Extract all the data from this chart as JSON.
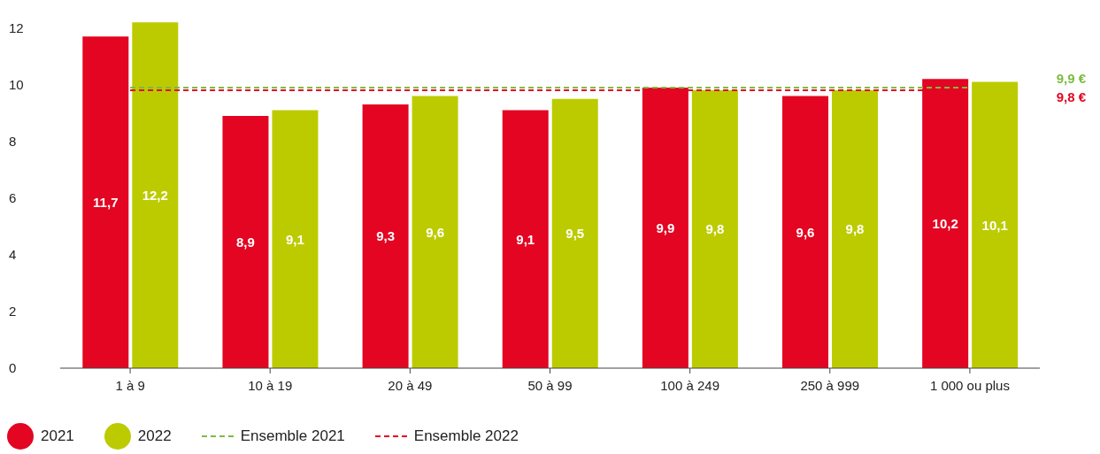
{
  "chart_data": {
    "type": "bar",
    "categories": [
      "1 à 9",
      "10 à 19",
      "20 à 49",
      "50 à 99",
      "100 à 249",
      "250 à 999",
      "1 000 ou plus"
    ],
    "series": [
      {
        "name": "2021",
        "color": "#e30521",
        "values": [
          11.7,
          8.9,
          9.3,
          9.1,
          9.9,
          9.6,
          10.2
        ],
        "value_labels": [
          "11,7",
          "8,9",
          "9,3",
          "9,1",
          "9,9",
          "9,6",
          "10,2"
        ]
      },
      {
        "name": "2022",
        "color": "#bccb00",
        "values": [
          12.2,
          9.1,
          9.6,
          9.5,
          9.8,
          9.8,
          10.1
        ],
        "value_labels": [
          "12,2",
          "9,1",
          "9,6",
          "9,5",
          "9,8",
          "9,8",
          "10,1"
        ]
      },
      {
        "name": "Ensemble 2021",
        "type": "line",
        "line_style": "dashed",
        "color": "#7dbb42",
        "values": [
          9.9,
          9.9,
          9.9,
          9.9,
          9.9,
          9.9,
          9.9
        ]
      },
      {
        "name": "Ensemble 2022",
        "type": "line",
        "line_style": "dashed",
        "color": "#e30521",
        "values": [
          9.8,
          9.8,
          9.8,
          9.8,
          9.8,
          9.8,
          9.8
        ]
      }
    ],
    "annotations": [
      "9,9 €",
      "9,8 €"
    ],
    "ylim": [
      0,
      12.3
    ],
    "yticks": [
      0,
      2,
      4,
      6,
      8,
      10,
      12
    ],
    "legend": "bottom left",
    "marker": "none"
  }
}
